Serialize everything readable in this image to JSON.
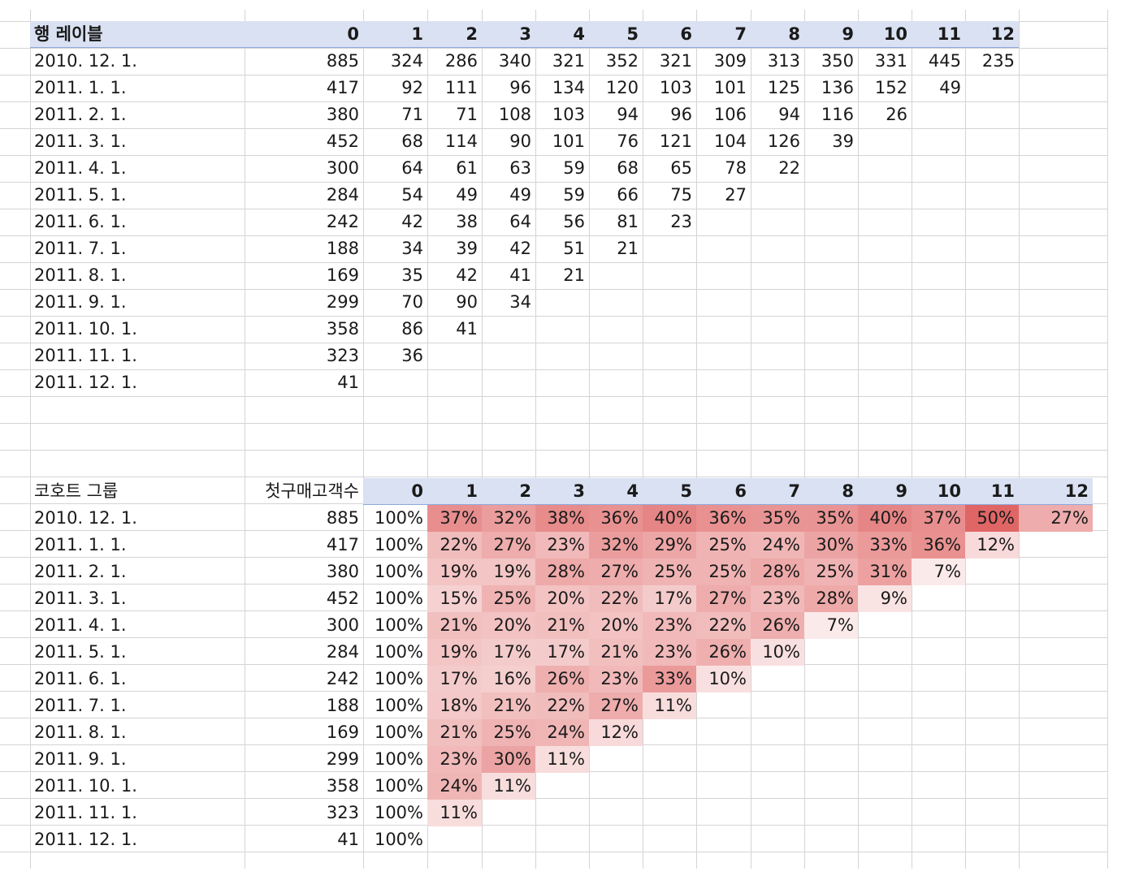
{
  "colors": {
    "header_band": "#d9e1f2",
    "heat_max": "#e06666",
    "gridline": "#d4d4d4"
  },
  "pivot": {
    "row_label_header": "행 레이블",
    "columns": [
      "0",
      "1",
      "2",
      "3",
      "4",
      "5",
      "6",
      "7",
      "8",
      "9",
      "10",
      "11",
      "12"
    ],
    "rows": [
      {
        "label": "2010. 12. 1.",
        "values": [
          "885",
          "324",
          "286",
          "340",
          "321",
          "352",
          "321",
          "309",
          "313",
          "350",
          "331",
          "445",
          "235"
        ]
      },
      {
        "label": "2011. 1. 1.",
        "values": [
          "417",
          "92",
          "111",
          "96",
          "134",
          "120",
          "103",
          "101",
          "125",
          "136",
          "152",
          "49"
        ]
      },
      {
        "label": "2011. 2. 1.",
        "values": [
          "380",
          "71",
          "71",
          "108",
          "103",
          "94",
          "96",
          "106",
          "94",
          "116",
          "26"
        ]
      },
      {
        "label": "2011. 3. 1.",
        "values": [
          "452",
          "68",
          "114",
          "90",
          "101",
          "76",
          "121",
          "104",
          "126",
          "39"
        ]
      },
      {
        "label": "2011. 4. 1.",
        "values": [
          "300",
          "64",
          "61",
          "63",
          "59",
          "68",
          "65",
          "78",
          "22"
        ]
      },
      {
        "label": "2011. 5. 1.",
        "values": [
          "284",
          "54",
          "49",
          "49",
          "59",
          "66",
          "75",
          "27"
        ]
      },
      {
        "label": "2011. 6. 1.",
        "values": [
          "242",
          "42",
          "38",
          "64",
          "56",
          "81",
          "23"
        ]
      },
      {
        "label": "2011. 7. 1.",
        "values": [
          "188",
          "34",
          "39",
          "42",
          "51",
          "21"
        ]
      },
      {
        "label": "2011. 8. 1.",
        "values": [
          "169",
          "35",
          "42",
          "41",
          "21"
        ]
      },
      {
        "label": "2011. 9. 1.",
        "values": [
          "299",
          "70",
          "90",
          "34"
        ]
      },
      {
        "label": "2011. 10. 1.",
        "values": [
          "358",
          "86",
          "41"
        ]
      },
      {
        "label": "2011. 11. 1.",
        "values": [
          "323",
          "36"
        ]
      },
      {
        "label": "2011. 12. 1.",
        "values": [
          "41"
        ]
      }
    ]
  },
  "retention": {
    "cohort_header": "코호트 그룹",
    "first_customers_header": "첫구매고객수",
    "columns": [
      "0",
      "1",
      "2",
      "3",
      "4",
      "5",
      "6",
      "7",
      "8",
      "9",
      "10",
      "11",
      "12"
    ],
    "rows": [
      {
        "label": "2010. 12. 1.",
        "first": "885",
        "pcts": [
          "100%",
          "37%",
          "32%",
          "38%",
          "36%",
          "40%",
          "36%",
          "35%",
          "35%",
          "40%",
          "37%",
          "50%",
          "27%"
        ]
      },
      {
        "label": "2011. 1. 1.",
        "first": "417",
        "pcts": [
          "100%",
          "22%",
          "27%",
          "23%",
          "32%",
          "29%",
          "25%",
          "24%",
          "30%",
          "33%",
          "36%",
          "12%"
        ]
      },
      {
        "label": "2011. 2. 1.",
        "first": "380",
        "pcts": [
          "100%",
          "19%",
          "19%",
          "28%",
          "27%",
          "25%",
          "25%",
          "28%",
          "25%",
          "31%",
          "7%"
        ]
      },
      {
        "label": "2011. 3. 1.",
        "first": "452",
        "pcts": [
          "100%",
          "15%",
          "25%",
          "20%",
          "22%",
          "17%",
          "27%",
          "23%",
          "28%",
          "9%"
        ]
      },
      {
        "label": "2011. 4. 1.",
        "first": "300",
        "pcts": [
          "100%",
          "21%",
          "20%",
          "21%",
          "20%",
          "23%",
          "22%",
          "26%",
          "7%"
        ]
      },
      {
        "label": "2011. 5. 1.",
        "first": "284",
        "pcts": [
          "100%",
          "19%",
          "17%",
          "17%",
          "21%",
          "23%",
          "26%",
          "10%"
        ]
      },
      {
        "label": "2011. 6. 1.",
        "first": "242",
        "pcts": [
          "100%",
          "17%",
          "16%",
          "26%",
          "23%",
          "33%",
          "10%"
        ]
      },
      {
        "label": "2011. 7. 1.",
        "first": "188",
        "pcts": [
          "100%",
          "18%",
          "21%",
          "22%",
          "27%",
          "11%"
        ]
      },
      {
        "label": "2011. 8. 1.",
        "first": "169",
        "pcts": [
          "100%",
          "21%",
          "25%",
          "24%",
          "12%"
        ]
      },
      {
        "label": "2011. 9. 1.",
        "first": "299",
        "pcts": [
          "100%",
          "23%",
          "30%",
          "11%"
        ]
      },
      {
        "label": "2011. 10. 1.",
        "first": "358",
        "pcts": [
          "100%",
          "24%",
          "11%"
        ]
      },
      {
        "label": "2011. 11. 1.",
        "first": "323",
        "pcts": [
          "100%",
          "11%"
        ]
      },
      {
        "label": "2011. 12. 1.",
        "first": "41",
        "pcts": [
          "100%"
        ]
      }
    ]
  }
}
